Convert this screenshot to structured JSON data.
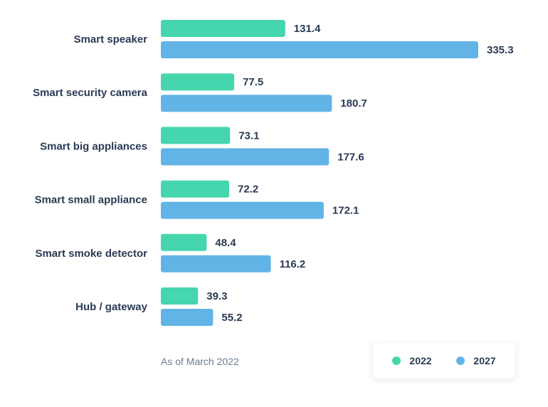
{
  "chart_data": {
    "type": "bar",
    "orientation": "horizontal",
    "categories": [
      "Smart speaker",
      "Smart security camera",
      "Smart big appliances",
      "Smart small appliance",
      "Smart smoke detector",
      "Hub / gateway"
    ],
    "series": [
      {
        "name": "2022",
        "color": "#45d6ad",
        "values": [
          131.4,
          77.5,
          73.1,
          72.2,
          48.4,
          39.3
        ]
      },
      {
        "name": "2027",
        "color": "#62b4e6",
        "values": [
          335.3,
          180.7,
          177.6,
          172.1,
          116.2,
          55.2
        ]
      }
    ],
    "xlim": [
      0,
      335.3
    ],
    "grid": false,
    "legend_position": "bottom-right",
    "data_labels": true
  },
  "note": "As of March 2022"
}
